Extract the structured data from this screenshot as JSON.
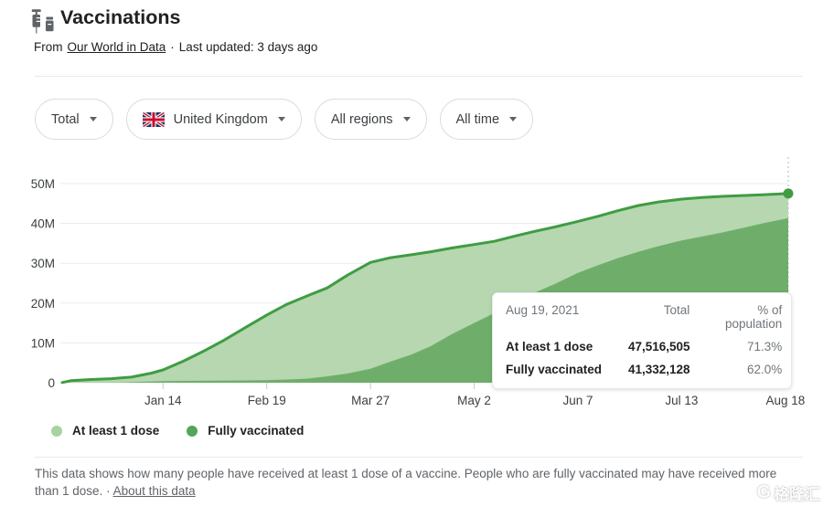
{
  "header": {
    "title": "Vaccinations",
    "source_prefix": "From",
    "source_link": "Our World in Data",
    "dot_separator": "·",
    "last_updated": "Last updated: 3 days ago"
  },
  "filters": {
    "total": "Total",
    "country": "United Kingdom",
    "regions": "All regions",
    "time": "All time"
  },
  "chart_data": {
    "type": "area",
    "x_domain": [
      "2020-12-10",
      "2021-08-19"
    ],
    "ylim": [
      0,
      50
    ],
    "unit": "millions of people",
    "grid": true,
    "legend_position": "bottom",
    "y_ticks": [
      {
        "value": 0,
        "label": "0"
      },
      {
        "value": 10,
        "label": "10M"
      },
      {
        "value": 20,
        "label": "20M"
      },
      {
        "value": 30,
        "label": "30M"
      },
      {
        "value": 40,
        "label": "40M"
      },
      {
        "value": 50,
        "label": "50M"
      }
    ],
    "x_ticks": [
      {
        "date": "2021-01-14",
        "label": "Jan 14"
      },
      {
        "date": "2021-02-19",
        "label": "Feb 19"
      },
      {
        "date": "2021-03-27",
        "label": "Mar 27"
      },
      {
        "date": "2021-05-02",
        "label": "May 2"
      },
      {
        "date": "2021-06-07",
        "label": "Jun 7"
      },
      {
        "date": "2021-07-13",
        "label": "Jul 13"
      },
      {
        "date": "2021-08-18",
        "label": "Aug 18"
      }
    ],
    "series": [
      {
        "name": "At least 1 dose",
        "line_color": "#3f9c43",
        "fill_color": "#b6d7af",
        "points": [
          [
            "2020-12-10",
            0.05
          ],
          [
            "2020-12-13",
            0.5
          ],
          [
            "2020-12-20",
            0.8
          ],
          [
            "2020-12-27",
            1.0
          ],
          [
            "2021-01-03",
            1.4
          ],
          [
            "2021-01-10",
            2.4
          ],
          [
            "2021-01-14",
            3.2
          ],
          [
            "2021-01-21",
            5.4
          ],
          [
            "2021-01-28",
            7.9
          ],
          [
            "2021-02-04",
            10.6
          ],
          [
            "2021-02-11",
            13.6
          ],
          [
            "2021-02-19",
            17.0
          ],
          [
            "2021-02-26",
            19.7
          ],
          [
            "2021-03-05",
            21.8
          ],
          [
            "2021-03-12",
            23.8
          ],
          [
            "2021-03-19",
            27.0
          ],
          [
            "2021-03-27",
            30.2
          ],
          [
            "2021-04-03",
            31.4
          ],
          [
            "2021-04-10",
            32.1
          ],
          [
            "2021-04-17",
            32.9
          ],
          [
            "2021-04-24",
            33.8
          ],
          [
            "2021-05-02",
            34.7
          ],
          [
            "2021-05-09",
            35.5
          ],
          [
            "2021-05-16",
            36.8
          ],
          [
            "2021-05-23",
            38.0
          ],
          [
            "2021-05-30",
            39.1
          ],
          [
            "2021-06-07",
            40.5
          ],
          [
            "2021-06-14",
            41.8
          ],
          [
            "2021-06-21",
            43.2
          ],
          [
            "2021-06-28",
            44.5
          ],
          [
            "2021-07-05",
            45.4
          ],
          [
            "2021-07-13",
            46.1
          ],
          [
            "2021-07-20",
            46.5
          ],
          [
            "2021-07-27",
            46.8
          ],
          [
            "2021-08-03",
            47.0
          ],
          [
            "2021-08-10",
            47.2
          ],
          [
            "2021-08-19",
            47.5
          ]
        ]
      },
      {
        "name": "Fully vaccinated",
        "line_color": "#6fae6a",
        "fill_color": "#6fae6a",
        "points": [
          [
            "2020-12-10",
            0.0
          ],
          [
            "2020-12-30",
            0.05
          ],
          [
            "2021-01-14",
            0.4
          ],
          [
            "2021-01-31",
            0.5
          ],
          [
            "2021-02-19",
            0.65
          ],
          [
            "2021-02-26",
            0.8
          ],
          [
            "2021-03-05",
            1.0
          ],
          [
            "2021-03-12",
            1.6
          ],
          [
            "2021-03-19",
            2.3
          ],
          [
            "2021-03-27",
            3.5
          ],
          [
            "2021-04-03",
            5.3
          ],
          [
            "2021-04-10",
            7.0
          ],
          [
            "2021-04-17",
            9.2
          ],
          [
            "2021-04-24",
            12.1
          ],
          [
            "2021-05-02",
            15.0
          ],
          [
            "2021-05-09",
            17.5
          ],
          [
            "2021-05-16",
            20.1
          ],
          [
            "2021-05-23",
            22.6
          ],
          [
            "2021-05-30",
            24.8
          ],
          [
            "2021-06-07",
            27.6
          ],
          [
            "2021-06-14",
            29.5
          ],
          [
            "2021-06-21",
            31.3
          ],
          [
            "2021-06-28",
            32.9
          ],
          [
            "2021-07-05",
            34.3
          ],
          [
            "2021-07-13",
            35.7
          ],
          [
            "2021-07-20",
            36.7
          ],
          [
            "2021-07-27",
            37.7
          ],
          [
            "2021-08-03",
            38.8
          ],
          [
            "2021-08-10",
            40.0
          ],
          [
            "2021-08-19",
            41.3
          ]
        ]
      }
    ],
    "cursor": {
      "date": "2021-08-19",
      "marker_value": 47.5,
      "marker_color": "#3f9c43",
      "line_color": "#b2b6bb"
    },
    "grid_color": "#e9eaee",
    "tick_color": "#c4c7cc"
  },
  "tooltip": {
    "date": "Aug 19, 2021",
    "col_total": "Total",
    "col_pct": "% of population",
    "rows": [
      {
        "label": "At least 1 dose",
        "total": "47,516,505",
        "pct": "71.3%"
      },
      {
        "label": "Fully vaccinated",
        "total": "41,332,128",
        "pct": "62.0%"
      }
    ]
  },
  "legend": {
    "items": [
      {
        "label": "At least 1 dose",
        "color": "#a7d3a1"
      },
      {
        "label": "Fully vaccinated",
        "color": "#53a657"
      }
    ]
  },
  "footer": {
    "text": "This data shows how many people have received at least 1 dose of a vaccine. People who are fully vaccinated may have received more than 1 dose.",
    "dot_separator": "·",
    "link": "About this data"
  },
  "watermark": {
    "logo": "G",
    "text": "格隆汇"
  }
}
